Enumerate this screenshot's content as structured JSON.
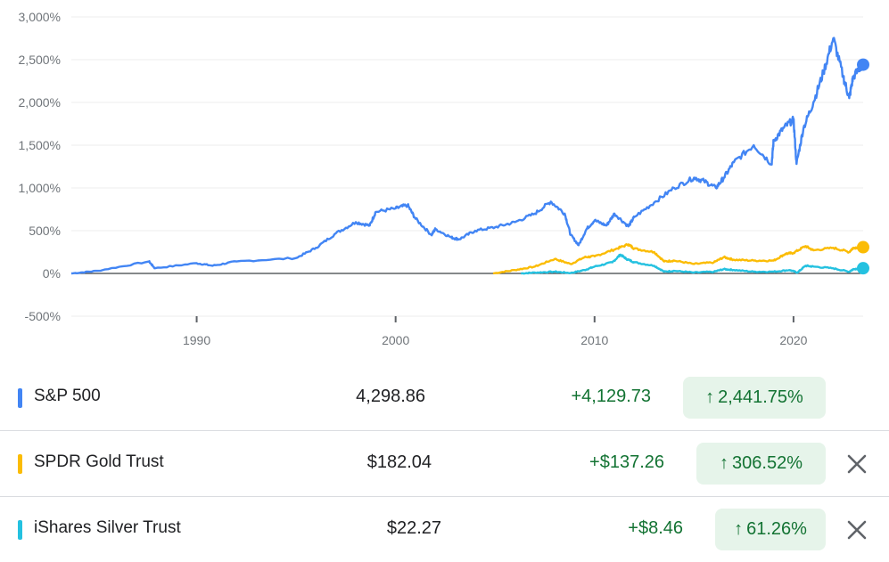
{
  "chart_data": {
    "type": "line",
    "title": "",
    "xlabel": "",
    "ylabel": "",
    "ylim": [
      -500,
      3000
    ],
    "xlim": [
      1983.7,
      2023.5
    ],
    "y_ticks": [
      "3,000%",
      "2,500%",
      "2,000%",
      "1,500%",
      "1,000%",
      "500%",
      "0%",
      "-500%"
    ],
    "y_tick_values": [
      3000,
      2500,
      2000,
      1500,
      1000,
      500,
      0,
      -500
    ],
    "x_ticks": [
      "1990",
      "2000",
      "2010",
      "2020"
    ],
    "x_tick_values": [
      1990,
      2000,
      2010,
      2020
    ],
    "grid": true,
    "series": [
      {
        "name": "S&P 500",
        "color": "#4285f4",
        "x": [
          1983.7,
          1985,
          1987.6,
          1987.9,
          1990,
          1990.8,
          1992,
          1995,
          1996,
          1997,
          1998,
          1998.7,
          1999,
          2000,
          2000.6,
          2001,
          2001.8,
          2002,
          2002.8,
          2003.2,
          2004,
          2005,
          2006,
          2007,
          2007.8,
          2008.5,
          2008.8,
          2009.2,
          2009.6,
          2010,
          2010.6,
          2011,
          2011.7,
          2012,
          2013,
          2014,
          2015,
          2015.5,
          2016.1,
          2016.5,
          2017,
          2018,
          2018.9,
          2019,
          2019.5,
          2020,
          2020.15,
          2020.5,
          2021,
          2021.5,
          2022.0,
          2022.5,
          2022.8,
          2023,
          2023.5
        ],
        "y": [
          0,
          30,
          140,
          60,
          120,
          90,
          140,
          180,
          300,
          470,
          600,
          560,
          720,
          760,
          800,
          640,
          450,
          520,
          420,
          400,
          500,
          540,
          600,
          700,
          840,
          700,
          450,
          330,
          520,
          620,
          560,
          700,
          550,
          660,
          830,
          1000,
          1120,
          1080,
          1000,
          1120,
          1300,
          1500,
          1280,
          1550,
          1700,
          1800,
          1280,
          1700,
          2000,
          2350,
          2750,
          2300,
          2050,
          2300,
          2442
        ]
      },
      {
        "name": "SPDR Gold Trust",
        "color": "#fbbc04",
        "x": [
          2004.9,
          2006,
          2007,
          2008,
          2008.8,
          2009.5,
          2010,
          2011,
          2011.7,
          2012,
          2013,
          2013.5,
          2014,
          2015,
          2016,
          2016.5,
          2017,
          2018,
          2019,
          2019.6,
          2020,
          2020.6,
          2021,
          2022,
          2022.8,
          2023,
          2023.5
        ],
        "y": [
          0,
          40,
          80,
          170,
          110,
          190,
          200,
          280,
          340,
          290,
          250,
          140,
          150,
          110,
          130,
          190,
          160,
          150,
          150,
          230,
          240,
          320,
          270,
          300,
          250,
          300,
          307
        ]
      },
      {
        "name": "iShares Silver Trust",
        "color": "#24c1e0",
        "x": [
          2006.3,
          2007,
          2008,
          2008.8,
          2009.5,
          2010,
          2010.9,
          2011.3,
          2011.6,
          2012,
          2013,
          2013.5,
          2014,
          2015,
          2016,
          2016.5,
          2017,
          2018,
          2019,
          2019.8,
          2020.2,
          2020.6,
          2021,
          2022,
          2022.8,
          2023,
          2023.5
        ],
        "y": [
          0,
          10,
          20,
          5,
          40,
          80,
          130,
          220,
          170,
          130,
          90,
          20,
          30,
          10,
          20,
          50,
          40,
          20,
          20,
          40,
          10,
          90,
          80,
          60,
          20,
          50,
          61
        ]
      }
    ]
  },
  "rows": [
    {
      "name": "S&P 500",
      "price": "4,298.86",
      "change": "+4,129.73",
      "arrow": "↑",
      "pct": "2,441.75%",
      "color": "#4285f4",
      "removable": false
    },
    {
      "name": "SPDR Gold Trust",
      "price": "$182.04",
      "change": "+$137.26",
      "arrow": "↑",
      "pct": "306.52%",
      "color": "#fbbc04",
      "removable": true
    },
    {
      "name": "iShares Silver Trust",
      "price": "$22.27",
      "change": "+$8.46",
      "arrow": "↑",
      "pct": "61.26%",
      "color": "#24c1e0",
      "removable": true
    }
  ]
}
